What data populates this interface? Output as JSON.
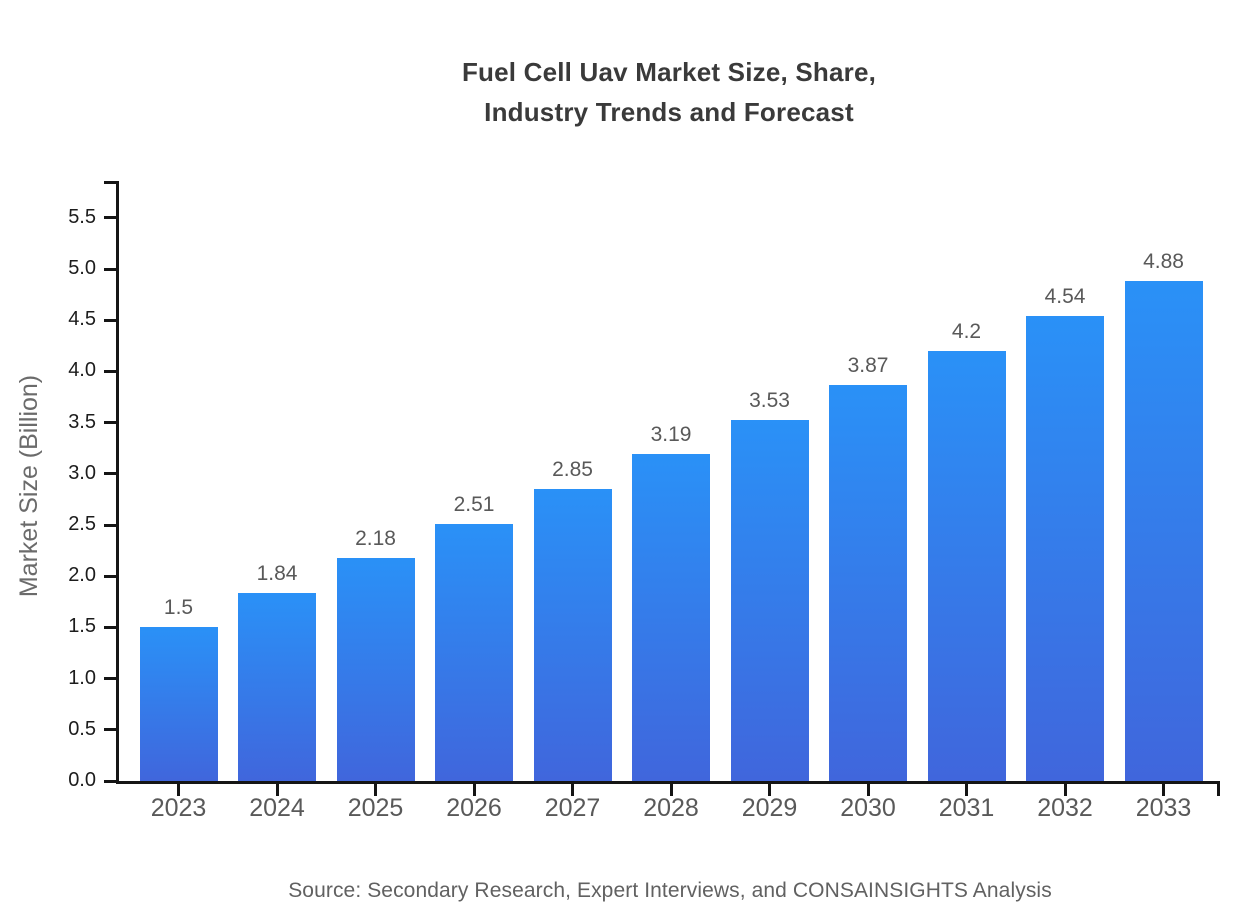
{
  "chart_data": {
    "type": "bar",
    "title": "Fuel Cell Uav Market Size, Share,\nIndustry Trends and Forecast",
    "ylabel": "Market Size (Billion)",
    "xlabel": "",
    "categories": [
      "2023",
      "2024",
      "2025",
      "2026",
      "2027",
      "2028",
      "2029",
      "2030",
      "2031",
      "2032",
      "2033"
    ],
    "values": [
      1.5,
      1.84,
      2.18,
      2.51,
      2.85,
      3.19,
      3.53,
      3.87,
      4.2,
      4.54,
      4.88
    ],
    "value_labels": [
      "1.5",
      "1.84",
      "2.18",
      "2.51",
      "2.85",
      "3.19",
      "3.53",
      "3.87",
      "4.2",
      "4.54",
      "4.88"
    ],
    "y_ticks": [
      "0.0",
      "0.5",
      "1.0",
      "1.5",
      "2.0",
      "2.5",
      "3.0",
      "3.5",
      "4.0",
      "4.5",
      "5.0",
      "5.5"
    ],
    "ylim": [
      0,
      5.86
    ],
    "grid": "off",
    "legend": "none",
    "source_note": "Source: Secondary Research, Expert Interviews, and CONSAINSIGHTS Analysis",
    "colors": {
      "bar_gradient_top": "#2a91f7",
      "bar_gradient_bottom": "#4066dc",
      "axis": "#151515",
      "title_text": "#3a3a3a",
      "tick_label": "#1c1c1c",
      "category_label": "#595959",
      "value_label": "#595959",
      "muted_text": "#616161",
      "background": "#ffffff"
    }
  }
}
